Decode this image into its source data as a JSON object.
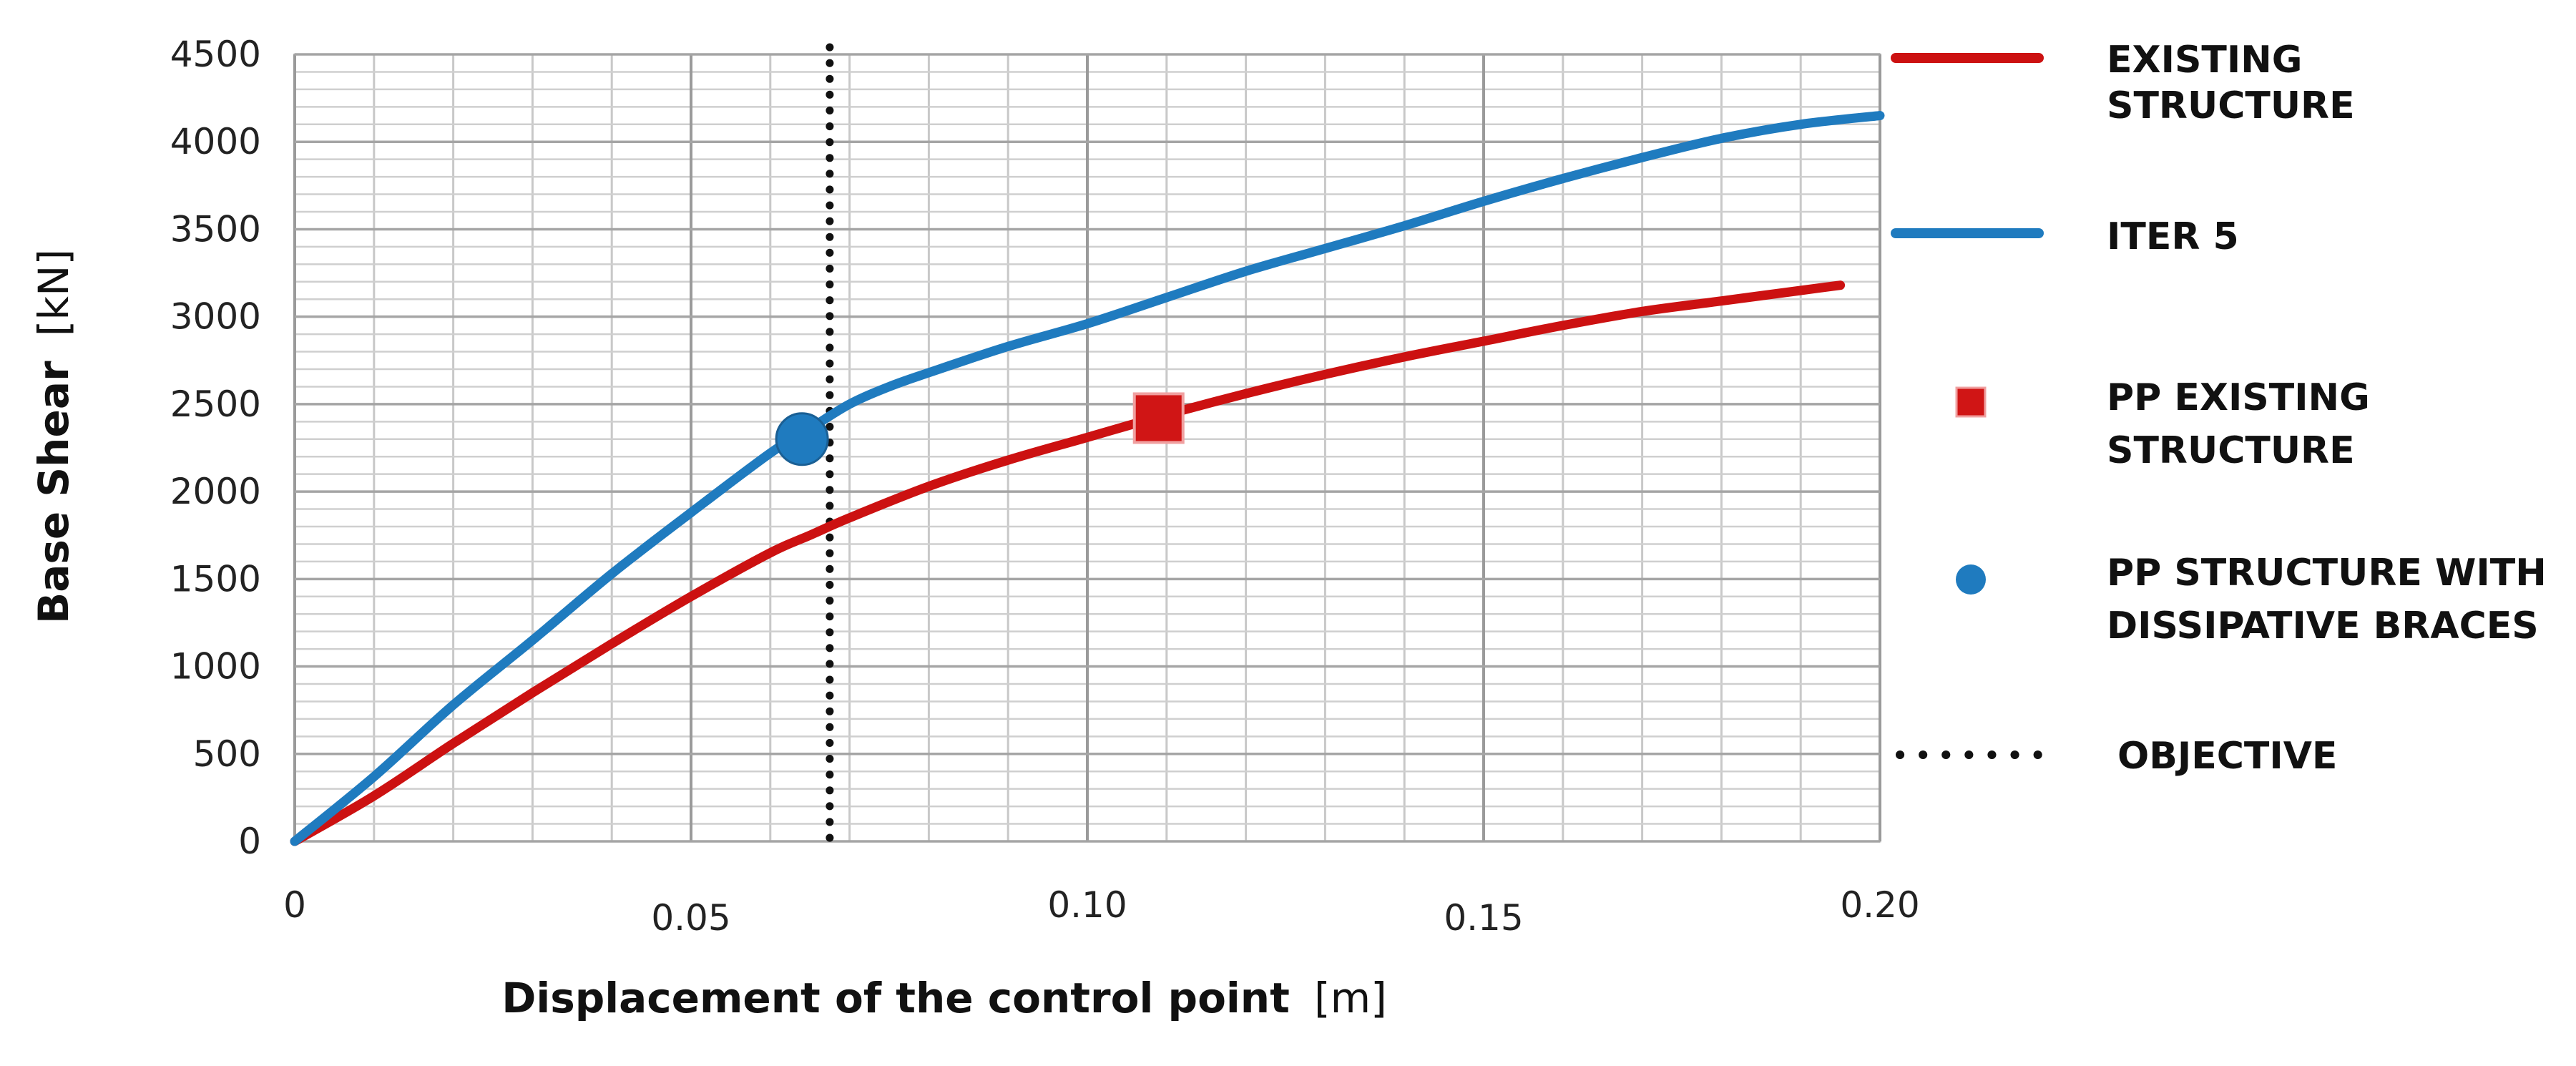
{
  "chart_data": {
    "type": "line",
    "xlabel": "Displacement of the control point",
    "xlabel_unit": "[m]",
    "ylabel": "Base Shear",
    "ylabel_unit": "[kN]",
    "xlim": [
      0,
      0.2
    ],
    "ylim": [
      0,
      4500
    ],
    "x_ticks": [
      {
        "value": 0,
        "label": "0"
      },
      {
        "value": 0.05,
        "label": "0.05"
      },
      {
        "value": 0.1,
        "label": "0.10"
      },
      {
        "value": 0.15,
        "label": "0.15"
      },
      {
        "value": 0.2,
        "label": "0.20"
      }
    ],
    "y_ticks": [
      {
        "value": 0,
        "label": "0"
      },
      {
        "value": 500,
        "label": "500"
      },
      {
        "value": 1000,
        "label": "1000"
      },
      {
        "value": 1500,
        "label": "1500"
      },
      {
        "value": 2000,
        "label": "2000"
      },
      {
        "value": 2500,
        "label": "2500"
      },
      {
        "value": 3000,
        "label": "3000"
      },
      {
        "value": 3500,
        "label": "3500"
      },
      {
        "value": 4000,
        "label": "4000"
      },
      {
        "value": 4500,
        "label": "4500"
      }
    ],
    "grid": true,
    "legend_position": "right",
    "series": [
      {
        "name": "EXISTING STRUCTURE",
        "kind": "line",
        "color": "#cc1111",
        "x": [
          0,
          0.01,
          0.02,
          0.03,
          0.04,
          0.05,
          0.06,
          0.065,
          0.07,
          0.08,
          0.09,
          0.1,
          0.11,
          0.12,
          0.13,
          0.14,
          0.15,
          0.16,
          0.17,
          0.18,
          0.19,
          0.195
        ],
        "y": [
          0,
          260,
          560,
          850,
          1130,
          1400,
          1650,
          1750,
          1850,
          2030,
          2180,
          2310,
          2440,
          2560,
          2670,
          2770,
          2860,
          2950,
          3030,
          3090,
          3150,
          3180
        ]
      },
      {
        "name": "ITER 5",
        "kind": "line",
        "color": "#1f7bbf",
        "x": [
          0,
          0.01,
          0.02,
          0.03,
          0.04,
          0.05,
          0.06,
          0.065,
          0.07,
          0.075,
          0.08,
          0.09,
          0.1,
          0.11,
          0.12,
          0.13,
          0.14,
          0.15,
          0.16,
          0.17,
          0.18,
          0.19,
          0.2
        ],
        "y": [
          0,
          370,
          780,
          1150,
          1530,
          1880,
          2220,
          2360,
          2500,
          2600,
          2680,
          2830,
          2960,
          3110,
          3260,
          3390,
          3520,
          3660,
          3790,
          3910,
          4020,
          4100,
          4150
        ]
      },
      {
        "name": "PP EXISTING STRUCTURE",
        "kind": "marker",
        "marker": "square",
        "color": "#d01515",
        "x": [
          0.109
        ],
        "y": [
          2420
        ]
      },
      {
        "name": "PP STRUCTURE WITH DISSIPATIVE BRACES",
        "kind": "marker",
        "marker": "circle",
        "color": "#1f7bbf",
        "x": [
          0.064
        ],
        "y": [
          2300
        ]
      },
      {
        "name": "OBJECTIVE",
        "kind": "vline",
        "color": "#111111",
        "x": [
          0.0675
        ]
      }
    ],
    "legend": [
      {
        "lines": [
          "EXISTING",
          "STRUCTURE"
        ],
        "symbol": "line",
        "color": "#cc1111"
      },
      {
        "lines": [
          "ITER 5"
        ],
        "symbol": "line",
        "color": "#1f7bbf"
      },
      {
        "lines": [
          "PP EXISTING",
          "STRUCTURE"
        ],
        "symbol": "square",
        "color": "#d01515"
      },
      {
        "lines": [
          "PP STRUCTURE WITH",
          "DISSIPATIVE BRACES"
        ],
        "symbol": "circle",
        "color": "#1f7bbf"
      },
      {
        "lines": [
          "OBJECTIVE"
        ],
        "symbol": "dotted",
        "color": "#111111"
      }
    ]
  }
}
